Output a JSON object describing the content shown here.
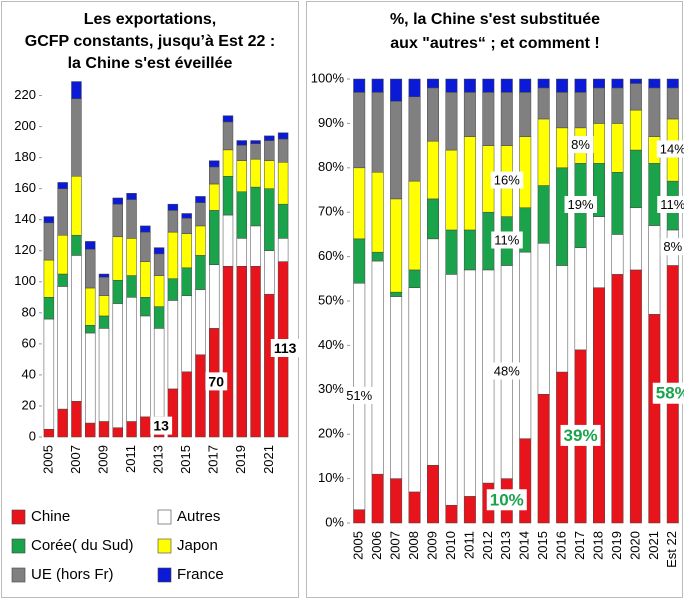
{
  "chart_data": [
    {
      "type": "bar",
      "stacked": true,
      "title": [
        "Les exportations,",
        "GCFP constants, jusqu’à Est 22 :",
        "la Chine s'est éveillée"
      ],
      "categories": [
        "2005",
        null,
        "2007",
        null,
        "2009",
        null,
        "2011",
        null,
        "2013",
        null,
        "2015",
        null,
        "2017",
        null,
        "2019",
        null,
        "2021",
        null
      ],
      "ylim": [
        0,
        230
      ],
      "yticks": [
        0,
        20,
        40,
        60,
        80,
        100,
        120,
        140,
        160,
        180,
        200,
        220
      ],
      "grid": false,
      "series": [
        {
          "name": "Chine",
          "color": "#e8141b",
          "values": [
            5,
            18,
            23,
            9,
            10,
            6,
            10,
            13,
            13,
            31,
            42,
            53,
            70,
            110,
            110,
            110,
            92,
            113
          ],
          "value_labels": [
            null,
            null,
            null,
            null,
            null,
            null,
            null,
            null,
            "13",
            null,
            null,
            null,
            "70",
            null,
            null,
            null,
            null,
            "113"
          ]
        },
        {
          "name": "Autres",
          "color": "#ffffff",
          "values": [
            71,
            79,
            94,
            58,
            60,
            80,
            80,
            65,
            57,
            57,
            49,
            42,
            41,
            33,
            18,
            26,
            28,
            15
          ]
        },
        {
          "name": "Corée( du Sud)",
          "color": "#1aa34a",
          "values": [
            14,
            8,
            13,
            5,
            8,
            15,
            14,
            12,
            14,
            14,
            18,
            22,
            35,
            25,
            30,
            25,
            40,
            22
          ]
        },
        {
          "name": "Japon",
          "color": "#ffff00",
          "values": [
            24,
            25,
            38,
            24,
            13,
            28,
            24,
            23,
            20,
            30,
            22,
            19,
            17,
            17,
            20,
            18,
            18,
            27
          ]
        },
        {
          "name": "UE (hors Fr)",
          "color": "#808080",
          "values": [
            24,
            30,
            50,
            25,
            12,
            21,
            25,
            19,
            14,
            14,
            10,
            15,
            11,
            18,
            10,
            10,
            13,
            15
          ]
        },
        {
          "name": "France",
          "color": "#0a1ad6",
          "values": [
            4,
            4,
            11,
            5,
            2,
            4,
            4,
            4,
            4,
            4,
            3,
            4,
            4,
            4,
            3,
            2,
            3,
            4
          ]
        }
      ]
    },
    {
      "type": "bar",
      "stacked": true,
      "title": [
        "%, la Chine s'est substituée",
        "aux \"autres“ ; et comment !"
      ],
      "categories": [
        "2005",
        "2006",
        "2007",
        "2008",
        "2009",
        "2010",
        "2011",
        "2012",
        "2013",
        "2014",
        "2015",
        "2016",
        "2017",
        "2018",
        "2019",
        "2020",
        "2021",
        "Est 22"
      ],
      "ylim": [
        0,
        100
      ],
      "yticks": [
        {
          "value": 0,
          "label": "0%"
        },
        {
          "value": 10,
          "label": "10%"
        },
        {
          "value": 20,
          "label": "20%"
        },
        {
          "value": 30,
          "label": "30%"
        },
        {
          "value": 40,
          "label": "40%"
        },
        {
          "value": 50,
          "label": "50%"
        },
        {
          "value": 60,
          "label": "60%"
        },
        {
          "value": 70,
          "label": "70%"
        },
        {
          "value": 80,
          "label": "80%"
        },
        {
          "value": 90,
          "label": "90%"
        },
        {
          "value": 100,
          "label": "100%"
        }
      ],
      "grid": false,
      "series": [
        {
          "color": "#e8141b",
          "values": [
            3,
            11,
            10,
            7,
            13,
            4,
            6,
            9,
            10,
            19,
            29,
            34,
            39,
            53,
            56,
            57,
            47,
            58
          ],
          "value_labels": [
            null,
            null,
            null,
            null,
            null,
            null,
            null,
            null,
            "10%",
            null,
            null,
            null,
            "39%",
            null,
            null,
            null,
            null,
            "58%"
          ],
          "value_label_color": "#1aa34a"
        },
        {
          "color": "#ffffff",
          "values": [
            51,
            48,
            41,
            46,
            51,
            52,
            51,
            48,
            48,
            42,
            34,
            24,
            23,
            16,
            9,
            14,
            20,
            8
          ],
          "value_labels": [
            "51%",
            null,
            null,
            null,
            null,
            null,
            null,
            null,
            "48%",
            null,
            null,
            null,
            null,
            null,
            null,
            null,
            null,
            "8%"
          ]
        },
        {
          "color": "#1aa34a",
          "values": [
            10,
            2,
            1,
            4,
            9,
            10,
            9,
            13,
            11,
            10,
            13,
            22,
            19,
            12,
            14,
            13,
            14,
            11
          ],
          "value_labels": [
            null,
            null,
            null,
            null,
            null,
            null,
            null,
            null,
            "11%",
            null,
            null,
            null,
            "19%",
            null,
            null,
            null,
            null,
            "11%"
          ]
        },
        {
          "color": "#ffff00",
          "values": [
            16,
            18,
            21,
            20,
            13,
            18,
            21,
            15,
            16,
            16,
            15,
            9,
            8,
            9,
            11,
            9,
            6,
            14
          ],
          "value_labels": [
            null,
            null,
            null,
            null,
            null,
            null,
            null,
            null,
            "16%",
            null,
            null,
            null,
            "8%",
            null,
            null,
            null,
            null,
            "14%"
          ]
        },
        {
          "color": "#808080",
          "values": [
            17,
            18,
            22,
            19,
            12,
            13,
            10,
            12,
            12,
            10,
            7,
            8,
            8,
            8,
            8,
            6,
            11,
            7
          ]
        },
        {
          "color": "#0a1ad6",
          "values": [
            3,
            3,
            5,
            4,
            2,
            3,
            3,
            3,
            3,
            3,
            2,
            3,
            3,
            2,
            2,
            1,
            2,
            2
          ]
        }
      ]
    }
  ]
}
